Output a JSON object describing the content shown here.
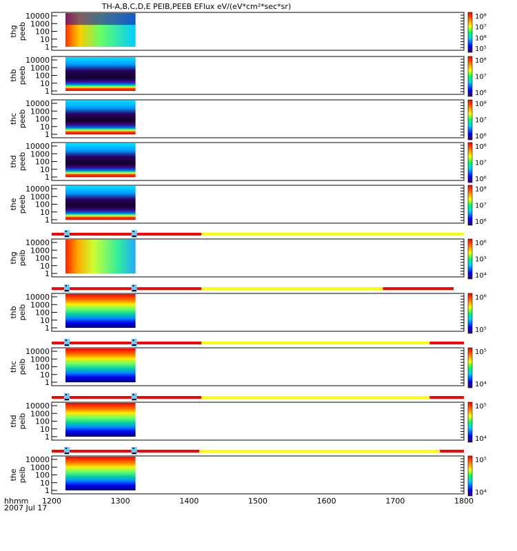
{
  "chart_data": {
    "type": "heatmap",
    "title": "TH-A,B,C,D,E PEIB,PEEB EFlux eV/(eV*cm²*sec*sr)",
    "x_axis": {
      "label_line1": "hhmm",
      "label_line2": "2007 Jul 17",
      "range": [
        1200,
        1800
      ],
      "ticks": [
        "1200",
        "1300",
        "1400",
        "1500",
        "1600",
        "1700",
        "1800"
      ]
    },
    "y_ticks": [
      "10000",
      "1000",
      "100",
      "10",
      "1"
    ],
    "data_extent_x": [
      1220,
      1322
    ],
    "panels": [
      {
        "probe": "thg",
        "type": "peeb",
        "cbar_ticks": [
          "10⁸",
          "10⁷",
          "10⁶",
          "10⁵"
        ]
      },
      {
        "probe": "thb",
        "type": "peeb",
        "cbar_ticks": [
          "10⁸",
          "10⁷",
          "10⁶"
        ]
      },
      {
        "probe": "thc",
        "type": "peeb",
        "cbar_ticks": [
          "10⁸",
          "10⁷",
          "10⁶"
        ]
      },
      {
        "probe": "thd",
        "type": "peeb",
        "cbar_ticks": [
          "10⁸",
          "10⁷",
          "10⁶"
        ]
      },
      {
        "probe": "the",
        "type": "peeb",
        "cbar_ticks": [
          "10⁸",
          "10⁷",
          "10⁶"
        ]
      },
      {
        "probe": "thg",
        "type": "peib",
        "cbar_ticks": [
          "10⁶",
          "10⁵",
          "10⁴"
        ]
      },
      {
        "probe": "thb",
        "type": "peib",
        "cbar_ticks": [
          "10⁶",
          "10⁵"
        ]
      },
      {
        "probe": "thc",
        "type": "peib",
        "cbar_ticks": [
          "10⁵",
          "10⁴"
        ]
      },
      {
        "probe": "thd",
        "type": "peib",
        "cbar_ticks": [
          "10⁵",
          "10⁴"
        ]
      },
      {
        "probe": "the",
        "type": "peib",
        "cbar_ticks": [
          "10⁵",
          "10⁴"
        ]
      }
    ],
    "mode_bars": [
      {
        "segments": [
          {
            "from": 1200,
            "to": 1418,
            "color": "#ff0000"
          },
          {
            "from": 1418,
            "to": 1800,
            "color": "#ffff00"
          }
        ]
      },
      {
        "segments": [
          {
            "from": 1200,
            "to": 1418,
            "color": "#ff0000"
          },
          {
            "from": 1418,
            "to": 1682,
            "color": "#ffff00"
          },
          {
            "from": 1682,
            "to": 1785,
            "color": "#ff0000"
          }
        ]
      },
      {
        "segments": [
          {
            "from": 1200,
            "to": 1418,
            "color": "#ff0000"
          },
          {
            "from": 1418,
            "to": 1750,
            "color": "#ffff00"
          },
          {
            "from": 1750,
            "to": 1800,
            "color": "#ff0000"
          }
        ]
      },
      {
        "segments": [
          {
            "from": 1200,
            "to": 1418,
            "color": "#ff0000"
          },
          {
            "from": 1418,
            "to": 1750,
            "color": "#ffff00"
          },
          {
            "from": 1750,
            "to": 1800,
            "color": "#ff0000"
          }
        ]
      },
      {
        "segments": [
          {
            "from": 1200,
            "to": 1415,
            "color": "#ff0000"
          },
          {
            "from": 1415,
            "to": 1765,
            "color": "#ffff00"
          },
          {
            "from": 1765,
            "to": 1800,
            "color": "#ff0000"
          }
        ]
      }
    ]
  }
}
